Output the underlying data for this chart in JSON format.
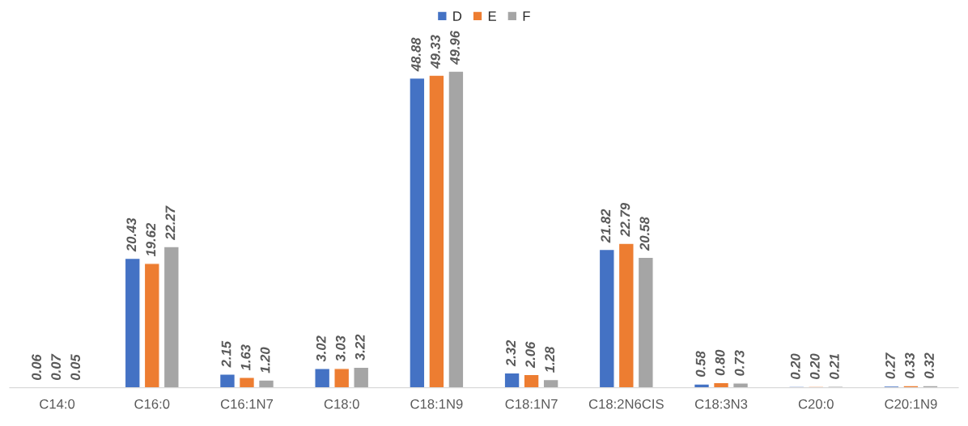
{
  "chart_data": {
    "type": "bar",
    "categories": [
      "C14:0",
      "C16:0",
      "C16:1N7",
      "C18:0",
      "C18:1N9",
      "C18:1N7",
      "C18:2N6CIS",
      "C18:3N3",
      "C20:0",
      "C20:1N9"
    ],
    "series": [
      {
        "name": "D",
        "color": "#4472c4",
        "values": [
          0.06,
          20.43,
          2.15,
          3.02,
          48.88,
          2.32,
          21.82,
          0.58,
          0.2,
          0.27
        ],
        "value_labels": [
          "0.06",
          "20.43",
          "2.15",
          "3.02",
          "48.88",
          "2.32",
          "21.82",
          "0.58",
          "0.20",
          "0.27"
        ]
      },
      {
        "name": "E",
        "color": "#ed7d31",
        "values": [
          0.07,
          19.62,
          1.63,
          3.03,
          49.33,
          2.06,
          22.79,
          0.8,
          0.2,
          0.33
        ],
        "value_labels": [
          "0.07",
          "19.62",
          "1.63",
          "3.03",
          "49.33",
          "2.06",
          "22.79",
          "0.80",
          "0.20",
          "0.33"
        ]
      },
      {
        "name": "F",
        "color": "#a5a5a5",
        "values": [
          0.05,
          22.27,
          1.2,
          3.22,
          49.96,
          1.28,
          20.58,
          0.73,
          0.21,
          0.32
        ],
        "value_labels": [
          "0.05",
          "22.27",
          "1.20",
          "3.22",
          "49.96",
          "1.28",
          "20.58",
          "0.73",
          "0.21",
          "0.32"
        ]
      }
    ],
    "tick_labels": "x",
    "grid": false,
    "legend": "top"
  }
}
